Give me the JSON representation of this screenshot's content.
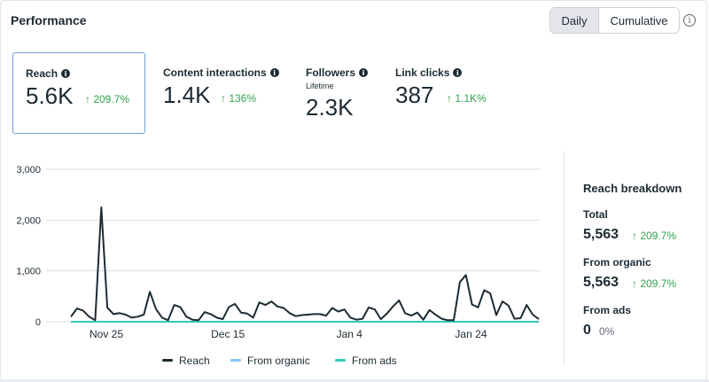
{
  "header": {
    "title": "Performance",
    "toggle": {
      "daily": "Daily",
      "cumulative": "Cumulative",
      "selected": "Daily"
    },
    "info_icon": "info-icon"
  },
  "metrics": [
    {
      "label": "Reach",
      "value": "5.6K",
      "change": "↑ 209.7%",
      "selected": true,
      "info": true
    },
    {
      "label": "Content interactions",
      "value": "1.4K",
      "change": "↑ 136%",
      "selected": false,
      "info": true
    },
    {
      "label": "Followers",
      "sub": "Lifetime",
      "value": "2.3K",
      "selected": false,
      "info": true
    },
    {
      "label": "Link clicks",
      "value": "387",
      "change": "↑ 1.1K%",
      "selected": false,
      "info": true
    }
  ],
  "breakdown": {
    "title": "Reach breakdown",
    "total_label": "Total",
    "total_value": "5,563",
    "total_change": "↑ 209.7%",
    "organic_label": "From organic",
    "organic_value": "5,563",
    "organic_change": "↑ 209.7%",
    "ads_label": "From ads",
    "ads_value": "0",
    "ads_change": "0%"
  },
  "colors": {
    "positive": "#31a24c",
    "reach_line": "#1c2b33",
    "organic_line": "#82c8f5",
    "ads_line": "#34c7c0",
    "selected_border": "#6fa0d8"
  },
  "chart_data": {
    "type": "line",
    "ylim": [
      0,
      3000
    ],
    "yticks": [
      "3,000",
      "2,000",
      "1,000",
      "0"
    ],
    "xticks": [
      "Nov 25",
      "Dec 15",
      "Jan 4",
      "Jan 24"
    ],
    "legend": [
      "Reach",
      "From organic",
      "From ads"
    ],
    "series": [
      {
        "name": "Reach",
        "values": [
          100,
          260,
          220,
          100,
          30,
          2250,
          280,
          150,
          170,
          140,
          80,
          100,
          140,
          590,
          250,
          80,
          30,
          330,
          290,
          100,
          40,
          30,
          190,
          150,
          80,
          50,
          290,
          350,
          180,
          160,
          80,
          380,
          330,
          400,
          300,
          270,
          170,
          110,
          130,
          140,
          150,
          150,
          120,
          270,
          200,
          240,
          80,
          40,
          60,
          280,
          240,
          50,
          160,
          300,
          420,
          170,
          120,
          180,
          40,
          230,
          140,
          60,
          30,
          30,
          780,
          920,
          340,
          280,
          620,
          560,
          130,
          400,
          320,
          60,
          70,
          330,
          140,
          50
        ]
      },
      {
        "name": "From organic",
        "values": [
          0
        ]
      },
      {
        "name": "From ads",
        "values": [
          0
        ]
      }
    ]
  }
}
